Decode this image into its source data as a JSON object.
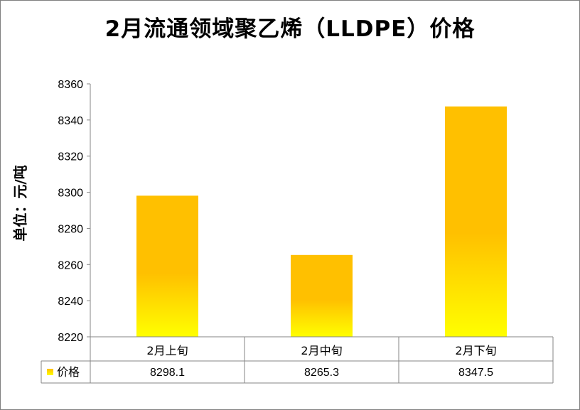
{
  "chart_data": {
    "type": "bar",
    "title": "2月流通领域聚乙烯（LLDPE）价格",
    "ylabel": "单位：元/吨",
    "categories": [
      "2月上旬",
      "2月中旬",
      "2月下旬"
    ],
    "series": [
      {
        "name": "价格",
        "values": [
          8298.1,
          8265.3,
          8347.5
        ]
      }
    ],
    "value_labels": [
      "8298.1",
      "8265.3",
      "8347.5"
    ],
    "ylim": [
      8220,
      8360
    ],
    "yticks": [
      8220,
      8240,
      8260,
      8280,
      8300,
      8320,
      8340,
      8360
    ],
    "grid": false,
    "legend": "data-table",
    "bar_gradient": [
      "#ffc000",
      "#ffff00"
    ]
  }
}
